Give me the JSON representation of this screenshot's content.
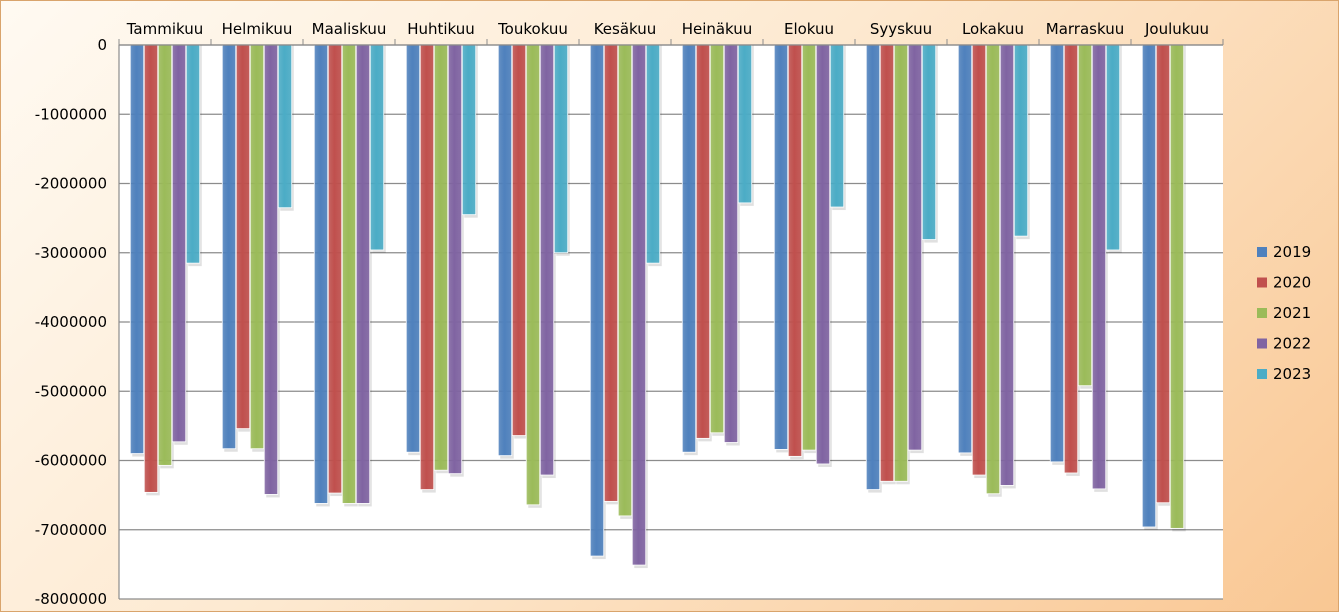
{
  "chart_data": {
    "type": "bar",
    "orientation": "vertical",
    "categories": [
      "Tammikuu",
      "Helmikuu",
      "Maaliskuu",
      "Huhtikuu",
      "Toukokuu",
      "Kesäkuu",
      "Heinäkuu",
      "Elokuu",
      "Syyskuu",
      "Lokakuu",
      "Marraskuu",
      "Joulukuu"
    ],
    "series": [
      {
        "name": "2019",
        "color": "#4f81bd",
        "values": [
          -5900000,
          -5830000,
          -6620000,
          -5880000,
          -5930000,
          -7380000,
          -5880000,
          -5840000,
          -6420000,
          -5890000,
          -6020000,
          -6960000
        ]
      },
      {
        "name": "2020",
        "color": "#c0504d",
        "values": [
          -6460000,
          -5540000,
          -6470000,
          -6420000,
          -5640000,
          -6590000,
          -5680000,
          -5940000,
          -6300000,
          -6210000,
          -6180000,
          -6610000
        ]
      },
      {
        "name": "2021",
        "color": "#9bbb59",
        "values": [
          -6070000,
          -5830000,
          -6620000,
          -6140000,
          -6640000,
          -6800000,
          -5600000,
          -5850000,
          -6300000,
          -6480000,
          -4920000,
          -6980000
        ]
      },
      {
        "name": "2022",
        "color": "#8064a2",
        "values": [
          -5730000,
          -6490000,
          -6620000,
          -6190000,
          -6210000,
          -7510000,
          -5740000,
          -6050000,
          -5850000,
          -6360000,
          -6410000,
          null
        ]
      },
      {
        "name": "2023",
        "color": "#4bacc6",
        "values": [
          -3150000,
          -2350000,
          -2960000,
          -2450000,
          -3000000,
          -3150000,
          -2280000,
          -2340000,
          -2810000,
          -2760000,
          -2960000,
          null
        ]
      }
    ],
    "ylim": [
      -8000000,
      0
    ],
    "yticks": [
      0,
      -1000000,
      -2000000,
      -3000000,
      -4000000,
      -5000000,
      -6000000,
      -7000000,
      -8000000
    ],
    "ytick_labels": [
      "0",
      "-1000000",
      "-2000000",
      "-3000000",
      "-4000000",
      "-5000000",
      "-6000000",
      "-7000000",
      "-8000000"
    ],
    "category_axis_position": "top",
    "grid": true,
    "legend_position": "right",
    "title": "",
    "xlabel": "",
    "ylabel": ""
  }
}
